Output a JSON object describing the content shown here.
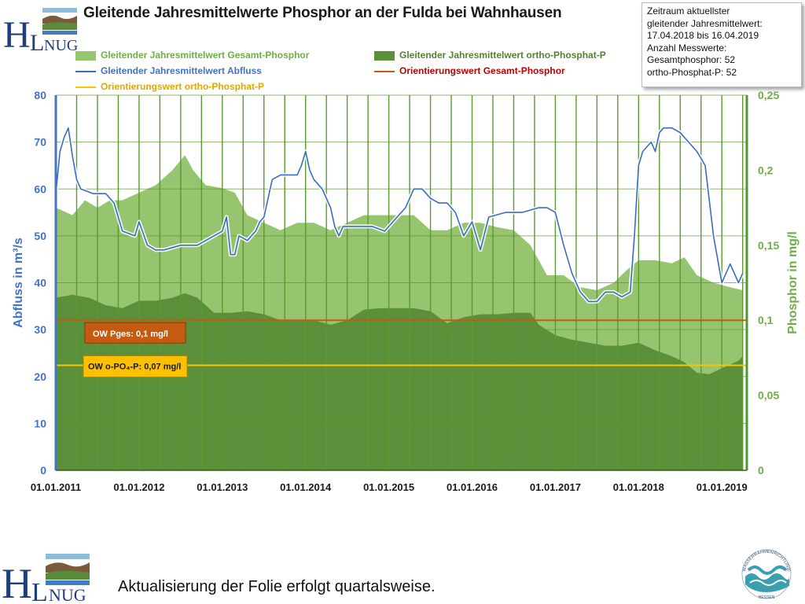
{
  "title": "Gleitende Jahresmittelwerte Phosphor an der Fulda bei Wahnhausen",
  "logo": {
    "text_h": "H",
    "text_l": "L",
    "text_nug": "NUG"
  },
  "infobox": [
    "Zeitraum aktuellster",
    "gleitender Jahresmittelwert:",
    "17.04.2018 bis 16.04.2019",
    "Anzahl Messwerte:",
    "Gesamtphosphor: 52",
    "ortho-Phosphat-P: 52"
  ],
  "legend": {
    "gesamt": "Gleitender Jahresmittelwert Gesamt-Phosphor",
    "ortho": "Gleitender Jahresmittelwert ortho-Phosphat-P",
    "abfluss": "Gleitender Jahresmittelwert Abfluss",
    "ow_gesamt": "Orientierungswert Gesamt-Phosphor",
    "ow_ortho": "Orientierungswert ortho-Phosphat-P"
  },
  "colors": {
    "gesamt_area": "#97c46e",
    "ortho_area": "#5b8f3a",
    "abfluss_line": "#3a6cc1",
    "ow_gesamt_line": "#c55a11",
    "ow_ortho_line": "#ffc000",
    "grid": "#5a9a30",
    "left_axis_text": "#4472c4",
    "right_axis_text": "#70ad47"
  },
  "chart_data": {
    "type": "area",
    "x_ticks": [
      "01.01.2011",
      "01.01.2012",
      "01.01.2013",
      "01.01.2014",
      "01.01.2015",
      "01.01.2016",
      "01.01.2017",
      "01.01.2018",
      "01.01.2019"
    ],
    "x_range": [
      2011.0,
      2019.3
    ],
    "y_left": {
      "label": "Abfluss in m³/s",
      "range": [
        0,
        80
      ],
      "ticks": [
        "0",
        "10",
        "20",
        "30",
        "40",
        "50",
        "60",
        "70",
        "80"
      ]
    },
    "y_right": {
      "label": "Phosphor in mg/l",
      "range": [
        0,
        0.25
      ],
      "ticks": [
        "0",
        "0,05",
        "0,1",
        "0,15",
        "0,2",
        "0,25"
      ]
    },
    "series": [
      {
        "name": "Gleitender Jahresmittelwert Gesamt-Phosphor",
        "axis": "right",
        "x": [
          2011.0,
          2011.2,
          2011.35,
          2011.5,
          2011.65,
          2011.8,
          2012.0,
          2012.2,
          2012.4,
          2012.55,
          2012.65,
          2012.8,
          2013.0,
          2013.15,
          2013.3,
          2013.5,
          2013.7,
          2013.9,
          2014.1,
          2014.3,
          2014.5,
          2014.7,
          2014.9,
          2015.1,
          2015.3,
          2015.5,
          2015.7,
          2015.9,
          2016.1,
          2016.3,
          2016.5,
          2016.7,
          2016.9,
          2017.1,
          2017.3,
          2017.5,
          2017.7,
          2017.85,
          2018.0,
          2018.2,
          2018.4,
          2018.55,
          2018.7,
          2018.9,
          2019.1,
          2019.25
        ],
        "y": [
          0.175,
          0.17,
          0.18,
          0.175,
          0.18,
          0.18,
          0.185,
          0.19,
          0.2,
          0.21,
          0.2,
          0.19,
          0.188,
          0.185,
          0.17,
          0.165,
          0.16,
          0.165,
          0.165,
          0.16,
          0.165,
          0.17,
          0.17,
          0.17,
          0.17,
          0.16,
          0.16,
          0.165,
          0.165,
          0.162,
          0.16,
          0.15,
          0.13,
          0.13,
          0.122,
          0.12,
          0.125,
          0.133,
          0.14,
          0.14,
          0.138,
          0.142,
          0.13,
          0.125,
          0.122,
          0.12
        ]
      },
      {
        "name": "Gleitender Jahresmittelwert ortho-Phosphat-P",
        "axis": "right",
        "x": [
          2011.0,
          2011.2,
          2011.4,
          2011.6,
          2011.8,
          2012.0,
          2012.2,
          2012.4,
          2012.55,
          2012.7,
          2012.9,
          2013.1,
          2013.3,
          2013.5,
          2013.7,
          2013.9,
          2014.1,
          2014.3,
          2014.5,
          2014.7,
          2014.9,
          2015.1,
          2015.3,
          2015.5,
          2015.7,
          2015.9,
          2016.1,
          2016.3,
          2016.5,
          2016.7,
          2016.8,
          2017.0,
          2017.2,
          2017.4,
          2017.6,
          2017.8,
          2018.0,
          2018.2,
          2018.4,
          2018.55,
          2018.7,
          2018.85,
          2019.0,
          2019.2,
          2019.25
        ],
        "y": [
          0.115,
          0.117,
          0.115,
          0.11,
          0.108,
          0.113,
          0.113,
          0.115,
          0.118,
          0.115,
          0.105,
          0.105,
          0.106,
          0.104,
          0.1,
          0.1,
          0.1,
          0.097,
          0.1,
          0.107,
          0.108,
          0.108,
          0.108,
          0.106,
          0.098,
          0.102,
          0.104,
          0.104,
          0.105,
          0.105,
          0.097,
          0.09,
          0.087,
          0.085,
          0.083,
          0.083,
          0.085,
          0.08,
          0.076,
          0.072,
          0.065,
          0.064,
          0.068,
          0.073,
          0.076
        ]
      },
      {
        "name": "Gleitender Jahresmittelwert Abfluss",
        "axis": "left",
        "x": [
          2011.0,
          2011.05,
          2011.1,
          2011.15,
          2011.2,
          2011.25,
          2011.3,
          2011.45,
          2011.6,
          2011.7,
          2011.8,
          2011.95,
          2012.0,
          2012.1,
          2012.2,
          2012.3,
          2012.5,
          2012.7,
          2012.9,
          2013.0,
          2013.05,
          2013.1,
          2013.15,
          2013.2,
          2013.3,
          2013.4,
          2013.45,
          2013.5,
          2013.6,
          2013.7,
          2013.8,
          2013.9,
          2013.95,
          2014.0,
          2014.05,
          2014.1,
          2014.2,
          2014.3,
          2014.35,
          2014.4,
          2014.45,
          2014.5,
          2014.6,
          2014.8,
          2014.95,
          2015.0,
          2015.1,
          2015.2,
          2015.3,
          2015.4,
          2015.5,
          2015.6,
          2015.7,
          2015.8,
          2015.9,
          2016.0,
          2016.05,
          2016.1,
          2016.2,
          2016.4,
          2016.6,
          2016.8,
          2016.9,
          2017.0,
          2017.1,
          2017.2,
          2017.3,
          2017.4,
          2017.5,
          2017.6,
          2017.7,
          2017.8,
          2017.9,
          2017.95,
          2018.0,
          2018.05,
          2018.15,
          2018.2,
          2018.25,
          2018.3,
          2018.4,
          2018.5,
          2018.6,
          2018.7,
          2018.8,
          2018.9,
          2018.95,
          2019.0,
          2019.05,
          2019.1,
          2019.2,
          2019.25
        ],
        "y": [
          59,
          68,
          71,
          73,
          67,
          62,
          60,
          59,
          59,
          57,
          51,
          50,
          53,
          48,
          47,
          47,
          48,
          48,
          50,
          51,
          54,
          46,
          46,
          50,
          49,
          51,
          53,
          54,
          62,
          63,
          63,
          63,
          65,
          68,
          64,
          62,
          60,
          56,
          52,
          50,
          52,
          52,
          52,
          52,
          51,
          52,
          54,
          56,
          60,
          60,
          58,
          57,
          57,
          55,
          50,
          53,
          50,
          47,
          54,
          55,
          55,
          56,
          56,
          55,
          48,
          42,
          38,
          36,
          36,
          38,
          38,
          37,
          38,
          50,
          65,
          68,
          70,
          68,
          72,
          73,
          73,
          72,
          70,
          68,
          65,
          50,
          45,
          40,
          42,
          44,
          40,
          42
        ]
      }
    ],
    "reference_lines": [
      {
        "name": "Orientierungswert Gesamt-Phosphor",
        "axis": "right",
        "value": 0.1,
        "label": "OW Pges: 0,1 mg/l"
      },
      {
        "name": "Orientierungswert ortho-Phosphat-P",
        "axis": "right",
        "value": 0.07,
        "label": "OW o-PO₄-P: 0,07 mg/l"
      }
    ],
    "grid": true,
    "legend_position": "top"
  },
  "footer": "Aktualisierung der Folie erfolgt quartalsweise.",
  "seal": {
    "top_text": "WASSERRAHMENRICHTLINIE",
    "bottom_text": "HESSEN"
  }
}
